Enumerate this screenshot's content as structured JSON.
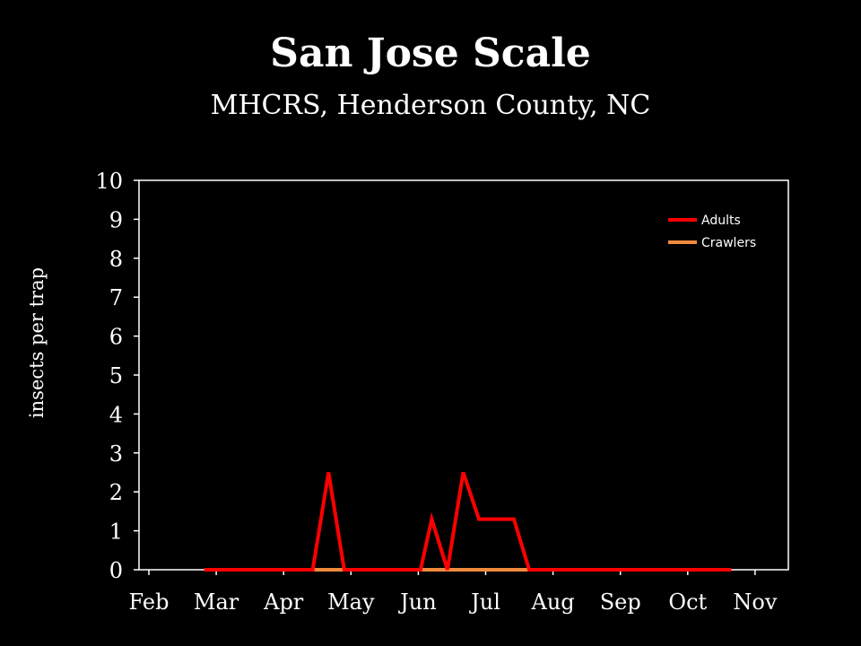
{
  "slide": {
    "title": "San Jose Scale",
    "subtitle": "MHCRS, Henderson County, NC"
  },
  "colors": {
    "background": "#000000",
    "text": "#ffffff",
    "axis": "#ffffff",
    "adults": "#ff0000",
    "crawlers": "#f08a3c"
  },
  "chart_data": {
    "type": "line",
    "title": "",
    "xlabel": "",
    "ylabel": "insects per trap",
    "x_ticks": [
      "Feb",
      "Mar",
      "Apr",
      "May",
      "Jun",
      "Jul",
      "Aug",
      "Sep",
      "Oct",
      "Nov"
    ],
    "y_ticks": [
      0,
      1,
      2,
      3,
      4,
      5,
      6,
      7,
      8,
      9,
      10
    ],
    "ylim": [
      0,
      10
    ],
    "grid": false,
    "legend_position": "top-right",
    "series": [
      {
        "name": "Adults",
        "color": "#ff0000",
        "points": [
          [
            "Feb 24",
            0
          ],
          [
            "Mar 7",
            0
          ],
          [
            "Mar 17",
            0
          ],
          [
            "Mar 28",
            0
          ],
          [
            "Apr 7",
            0
          ],
          [
            "Apr 14",
            0
          ],
          [
            "Apr 21",
            2.5
          ],
          [
            "Apr 28",
            0
          ],
          [
            "May 5",
            0
          ],
          [
            "May 12",
            0
          ],
          [
            "May 19",
            0
          ],
          [
            "May 26",
            0
          ],
          [
            "Jun 2",
            0
          ],
          [
            "Jun 7",
            1.3
          ],
          [
            "Jun 14",
            0
          ],
          [
            "Jun 21",
            2.5
          ],
          [
            "Jun 28",
            1.3
          ],
          [
            "Jul 7",
            1.3
          ],
          [
            "Jul 14",
            1.3
          ],
          [
            "Jul 21",
            0
          ],
          [
            "Jul 28",
            0
          ],
          [
            "Aug 7",
            0
          ],
          [
            "Aug 14",
            0
          ],
          [
            "Aug 21",
            0
          ],
          [
            "Aug 28",
            0
          ],
          [
            "Sep 7",
            0
          ],
          [
            "Sep 14",
            0
          ],
          [
            "Sep 21",
            0
          ],
          [
            "Sep 28",
            0
          ],
          [
            "Oct 7",
            0
          ],
          [
            "Oct 14",
            0
          ],
          [
            "Oct 21",
            0
          ]
        ]
      },
      {
        "name": "Crawlers",
        "color": "#f08a3c",
        "points": [
          [
            "Apr 14",
            0
          ],
          [
            "Apr 21",
            0
          ],
          [
            "Apr 28",
            0
          ],
          [
            "May 5",
            0
          ],
          [
            "May 12",
            0
          ],
          [
            "May 19",
            0
          ],
          [
            "May 26",
            0
          ],
          [
            "Jun 2",
            0
          ],
          [
            "Jun 14",
            0
          ],
          [
            "Jun 21",
            0
          ],
          [
            "Jun 28",
            0
          ],
          [
            "Jul 7",
            0
          ],
          [
            "Jul 14",
            0
          ],
          [
            "Jul 21",
            0
          ],
          [
            "Jul 28",
            0
          ],
          [
            "Aug 7",
            0
          ],
          [
            "Aug 14",
            0
          ],
          [
            "Aug 21",
            0
          ],
          [
            "Aug 28",
            0
          ],
          [
            "Sep 7",
            0
          ],
          [
            "Sep 14",
            0
          ],
          [
            "Sep 21",
            0
          ],
          [
            "Sep 28",
            0
          ]
        ]
      }
    ]
  }
}
